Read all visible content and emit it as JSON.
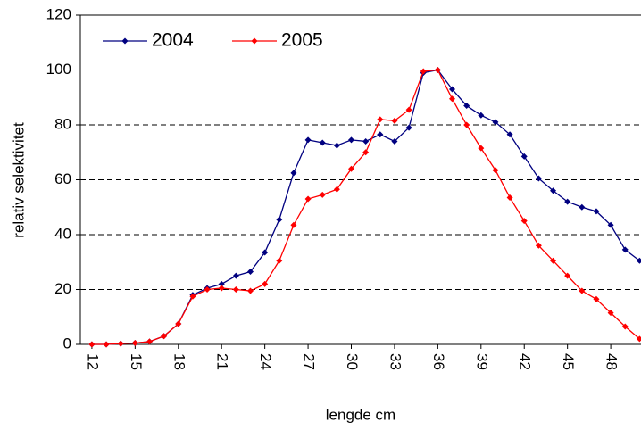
{
  "chart_data": {
    "type": "line",
    "x_label": "lengde cm",
    "y_label": "relativ selektivitet",
    "x": [
      12,
      13,
      14,
      15,
      16,
      17,
      18,
      19,
      20,
      21,
      22,
      23,
      24,
      25,
      26,
      27,
      28,
      29,
      30,
      31,
      32,
      33,
      34,
      35,
      36,
      37,
      38,
      39,
      40,
      41,
      42,
      43,
      44,
      45,
      46,
      47,
      48,
      49,
      50
    ],
    "series": [
      {
        "name": "2004",
        "color": "#000080",
        "values": [
          0,
          0,
          0.3,
          0.5,
          1,
          3,
          7.5,
          18,
          20.5,
          22,
          25,
          26.5,
          33.5,
          45.5,
          62.5,
          74.5,
          73.5,
          72.5,
          74.5,
          74,
          76.5,
          74,
          79,
          99,
          100,
          93,
          87,
          83.5,
          81,
          76.5,
          68.5,
          60.5,
          56,
          52,
          50,
          48.5,
          43.5,
          34.5,
          30.5
        ]
      },
      {
        "name": "2005",
        "color": "#ff0000",
        "values": [
          0,
          0,
          0.3,
          0.5,
          1,
          3,
          7.5,
          17.5,
          20,
          20.5,
          20,
          19.5,
          22,
          30.5,
          43.5,
          53,
          54.5,
          56.5,
          64,
          70,
          82,
          81.5,
          85.5,
          99.5,
          100,
          89.5,
          80,
          71.5,
          63.5,
          53.5,
          45,
          36,
          30.5,
          25,
          19.5,
          16.5,
          11.5,
          6.5,
          2
        ]
      }
    ],
    "xlim": [
      11.2,
      50.1
    ],
    "xticks": [
      12,
      15,
      18,
      21,
      24,
      27,
      30,
      33,
      36,
      39,
      42,
      45,
      48
    ],
    "ylim": [
      0,
      120
    ],
    "yticks": [
      0,
      20,
      40,
      60,
      80,
      100,
      120
    ],
    "grid": true,
    "legend": "top-left"
  }
}
